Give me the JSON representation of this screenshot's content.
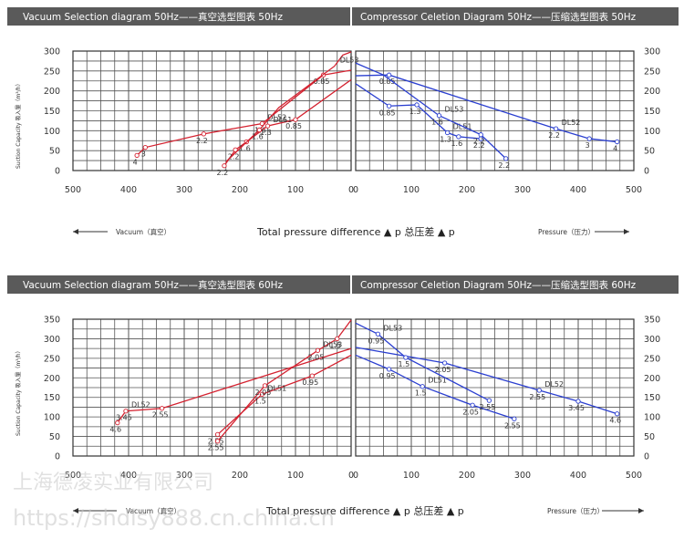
{
  "panels": [
    {
      "left_title": "Vacuum Selection diagram 50Hz——真空选型图表 50Hz",
      "right_title": "Compressor Celetion Diagram 50Hz——压缩选型图表 50Hz",
      "y_axis_label": "Suction Capacity 吸入量（m³/h）",
      "vacuum_label": "Vacuum（真空）",
      "pressure_label": "Pressure（压力）",
      "x_title": "Total pressure difference ▲ p 总压差 ▲ p"
    },
    {
      "left_title": "Vacuum Selection diagram 50Hz——真空选型图表 60Hz",
      "right_title": "Compressor Celetion Diagram 50Hz——压缩选型图表 60Hz",
      "y_axis_label": "Suction Capacity 吸入量（m³/h）",
      "vacuum_label": "Vacuum（真空）",
      "pressure_label": "Pressure（压力）",
      "x_title": "Total pressure difference ▲ p 总压差 ▲ p"
    }
  ],
  "watermark": {
    "company": "上海德凌实业有限公司",
    "url": "https://shdlsy888.cn.china.cn"
  },
  "colors": {
    "vacuum": "#d42230",
    "pressure": "#2b3fd0",
    "header": "#5a5a5a"
  },
  "chart_data": [
    {
      "type": "line",
      "title": "Vacuum Selection diagram 50Hz——真空选型图表 50Hz",
      "xlabel": "Total pressure difference ▲ p 总压差 ▲ p",
      "ylabel": "Suction Capacity 吸入量（m³/h）",
      "xlim": [
        500,
        0
      ],
      "ylim": [
        0,
        300
      ],
      "grid": true,
      "xticks": [
        "500",
        "400",
        "300",
        "200",
        "100",
        "0"
      ],
      "yticks": [
        "0",
        "50",
        "100",
        "150",
        "200",
        "250",
        "300"
      ],
      "series": [
        {
          "name": "DL52",
          "points": [
            [
              385,
              38,
              "4"
            ],
            [
              370,
              58,
              "3"
            ],
            [
              265,
              92,
              "2.2"
            ],
            [
              160,
              118,
              "1.6"
            ],
            [
              50,
              240,
              "0.85"
            ],
            [
              0,
              252,
              ""
            ]
          ]
        },
        {
          "name": "DL51",
          "points": [
            [
              228,
              12,
              "2.2"
            ],
            [
              208,
              52,
              "2.2"
            ],
            [
              188,
              72,
              "1.6"
            ],
            [
              150,
              112,
              "1.3"
            ],
            [
              100,
              128,
              "0.85"
            ],
            [
              0,
              228,
              ""
            ]
          ]
        },
        {
          "name": "DL53",
          "points": [
            [
              225,
              22,
              ""
            ],
            [
              165,
              102,
              "1.6"
            ],
            [
              130,
              158,
              ""
            ],
            [
              30,
              262,
              ""
            ],
            [
              15,
              290,
              ""
            ],
            [
              0,
              298,
              ""
            ]
          ]
        }
      ]
    },
    {
      "type": "line",
      "title": "Compressor Celetion Diagram 50Hz——压缩选型图表 50Hz",
      "xlabel": "Total pressure difference ▲ p 总压差 ▲ p",
      "ylabel": "Suction Capacity 吸入量（m³/h）",
      "xlim": [
        0,
        500
      ],
      "ylim": [
        0,
        300
      ],
      "grid": true,
      "xticks": [
        "0",
        "100",
        "200",
        "300",
        "400",
        "500"
      ],
      "yticks": [
        "0",
        "50",
        "100",
        "150",
        "200",
        "250",
        "300"
      ],
      "series": [
        {
          "name": "DL52",
          "points": [
            [
              0,
              238,
              ""
            ],
            [
              60,
              240,
              "0.85"
            ],
            [
              360,
              105,
              "2.2"
            ],
            [
              420,
              80,
              "3"
            ],
            [
              470,
              72,
              "4"
            ]
          ]
        },
        {
          "name": "DL51",
          "points": [
            [
              0,
              218,
              ""
            ],
            [
              60,
              162,
              "0.85"
            ],
            [
              110,
              165,
              "1.3"
            ],
            [
              165,
              95,
              "1.3"
            ],
            [
              185,
              85,
              "1.6"
            ],
            [
              225,
              80,
              "2.2"
            ]
          ]
        },
        {
          "name": "DL53",
          "points": [
            [
              0,
              270,
              ""
            ],
            [
              50,
              240,
              ""
            ],
            [
              150,
              138,
              "1.6"
            ],
            [
              225,
              90,
              "2.2"
            ],
            [
              270,
              30,
              "2.2"
            ]
          ]
        }
      ]
    },
    {
      "type": "line",
      "title": "Vacuum Selection diagram 50Hz——真空选型图表 60Hz",
      "xlabel": "Total pressure difference ▲ p 总压差 ▲ p",
      "ylabel": "Suction Capacity 吸入量（m³/h）",
      "xlim": [
        500,
        0
      ],
      "ylim": [
        0,
        350
      ],
      "grid": true,
      "xticks": [
        "500",
        "400",
        "300",
        "200",
        "100",
        "0"
      ],
      "yticks": [
        "0",
        "50",
        "100",
        "150",
        "200",
        "250",
        "300",
        "350"
      ],
      "series": [
        {
          "name": "DL52",
          "points": [
            [
              420,
              85,
              "4.6"
            ],
            [
              405,
              115,
              "3.45"
            ],
            [
              340,
              122,
              "2.55"
            ],
            [
              0,
              275,
              ""
            ]
          ]
        },
        {
          "name": "DL51",
          "points": [
            [
              240,
              55,
              "2.55"
            ],
            [
              160,
              158,
              "1.5"
            ],
            [
              70,
              205,
              "0.95"
            ],
            [
              0,
              258,
              ""
            ]
          ]
        },
        {
          "name": "DL53",
          "points": [
            [
              240,
              38,
              "2.55"
            ],
            [
              155,
              180,
              "2.05"
            ],
            [
              60,
              270,
              "2.05"
            ],
            [
              25,
              300,
              "1.5"
            ],
            [
              0,
              348,
              ""
            ]
          ]
        }
      ]
    },
    {
      "type": "line",
      "title": "Compressor Celetion Diagram 50Hz——压缩选型图表 60Hz",
      "xlabel": "Total pressure difference ▲ p 总压差 ▲ p",
      "ylabel": "Suction Capacity 吸入量（m³/h）",
      "xlim": [
        0,
        500
      ],
      "ylim": [
        0,
        350
      ],
      "grid": true,
      "xticks": [
        "0",
        "100",
        "200",
        "300",
        "400",
        "500"
      ],
      "yticks": [
        "0",
        "50",
        "100",
        "150",
        "200",
        "250",
        "300",
        "350"
      ],
      "series": [
        {
          "name": "DL52",
          "points": [
            [
              0,
              278,
              ""
            ],
            [
              160,
              238,
              "2.05"
            ],
            [
              330,
              168,
              "2.55"
            ],
            [
              400,
              140,
              "3.45"
            ],
            [
              470,
              108,
              "4.6"
            ]
          ]
        },
        {
          "name": "DL51",
          "points": [
            [
              0,
              258,
              ""
            ],
            [
              60,
              222,
              "0.95"
            ],
            [
              120,
              178,
              "1.5"
            ],
            [
              210,
              130,
              "2.05"
            ],
            [
              285,
              95,
              "2.55"
            ]
          ]
        },
        {
          "name": "DL53",
          "points": [
            [
              0,
              340,
              ""
            ],
            [
              40,
              312,
              "0.95"
            ],
            [
              90,
              252,
              "1.5"
            ],
            [
              240,
              142,
              "2.55"
            ]
          ]
        }
      ]
    }
  ]
}
